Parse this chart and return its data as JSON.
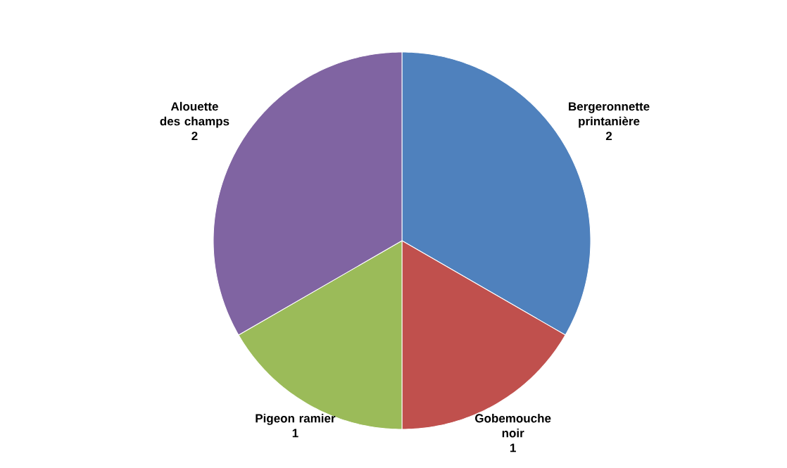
{
  "chart_data": {
    "type": "pie",
    "categories": [
      "Bergeronnette printanière",
      "Gobemouche noir",
      "Pigeon ramier",
      "Alouette des champs"
    ],
    "values": [
      2,
      1,
      1,
      2
    ],
    "colors": [
      "#4f81bd",
      "#c0504d",
      "#9bbb59",
      "#8064a2"
    ],
    "data_labels": true
  }
}
